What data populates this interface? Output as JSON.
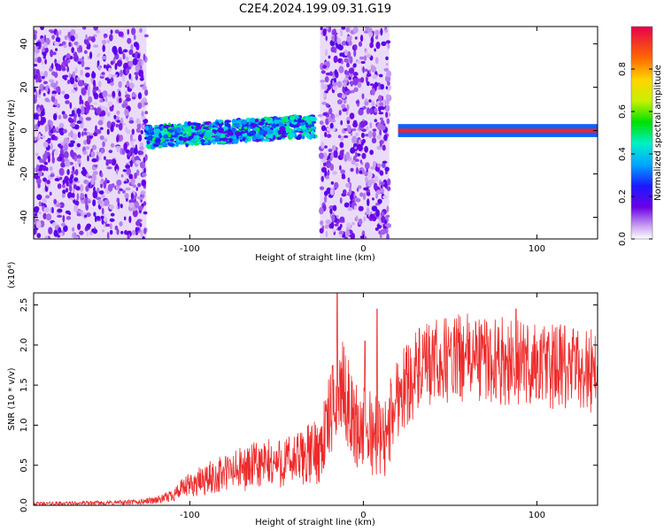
{
  "title": "C2E4.2024.199.09.31.G19",
  "chart_data": [
    {
      "type": "heatmap",
      "xlabel": "Height of straight line (km)",
      "ylabel": "Frequency (Hz)",
      "xlim": [
        -190,
        135
      ],
      "ylim": [
        -50,
        48
      ],
      "xticks": [
        -100,
        0,
        100
      ],
      "yticks": [
        -40,
        -20,
        0,
        20,
        40
      ],
      "colorbar": {
        "label": "Normalized spectral amplitude",
        "range": [
          0,
          1
        ],
        "ticks": [
          0.0,
          0.2,
          0.4,
          0.6,
          0.8
        ],
        "tick_labels": [
          "0.0",
          "0.2",
          "0.4",
          "0.6",
          "0.8"
        ]
      },
      "regions": [
        {
          "kind": "noise",
          "x": [
            -190,
            -125
          ],
          "y": [
            -50,
            48
          ],
          "level": 0.12
        },
        {
          "kind": "band",
          "x": [
            -125,
            -28
          ],
          "center": [
            -3,
            2
          ],
          "width": 5,
          "level": 0.35
        },
        {
          "kind": "noise",
          "x": [
            -25,
            15
          ],
          "y": [
            -50,
            48
          ],
          "level": 0.12
        },
        {
          "kind": "line",
          "x": [
            20,
            135
          ],
          "center": 0,
          "width": 1.5,
          "level": 0.95
        }
      ]
    },
    {
      "type": "line",
      "xlabel": "Height of straight line (km)",
      "ylabel": "SNR (10 * v/v)",
      "y_multiplier": "(x10⁴)",
      "xlim": [
        -190,
        135
      ],
      "ylim": [
        0,
        2.65
      ],
      "xticks": [
        -100,
        0,
        100
      ],
      "yticks": [
        0.0,
        0.5,
        1.0,
        1.5,
        2.0,
        2.5
      ],
      "ytick_labels": [
        "0.0",
        "0.5",
        "1.0",
        "1.5",
        "2.0",
        "2.5"
      ],
      "color": "#ee2a2a",
      "envelope": [
        {
          "x": -190,
          "y": 0.02
        },
        {
          "x": -150,
          "y": 0.03
        },
        {
          "x": -130,
          "y": 0.04
        },
        {
          "x": -115,
          "y": 0.08
        },
        {
          "x": -100,
          "y": 0.25
        },
        {
          "x": -80,
          "y": 0.4
        },
        {
          "x": -60,
          "y": 0.5
        },
        {
          "x": -40,
          "y": 0.55
        },
        {
          "x": -25,
          "y": 0.7
        },
        {
          "x": -18,
          "y": 1.2
        },
        {
          "x": -12,
          "y": 1.5
        },
        {
          "x": -5,
          "y": 1.0
        },
        {
          "x": 5,
          "y": 0.9
        },
        {
          "x": 12,
          "y": 0.8
        },
        {
          "x": 20,
          "y": 1.4
        },
        {
          "x": 30,
          "y": 1.65
        },
        {
          "x": 45,
          "y": 1.8
        },
        {
          "x": 60,
          "y": 1.85
        },
        {
          "x": 80,
          "y": 1.8
        },
        {
          "x": 100,
          "y": 1.75
        },
        {
          "x": 120,
          "y": 1.7
        },
        {
          "x": 135,
          "y": 1.7
        }
      ],
      "peaks": [
        {
          "x": -15,
          "y": 2.65
        },
        {
          "x": 8,
          "y": 2.45
        },
        {
          "x": 1,
          "y": 2.05
        },
        {
          "x": 88,
          "y": 2.45
        }
      ]
    }
  ]
}
